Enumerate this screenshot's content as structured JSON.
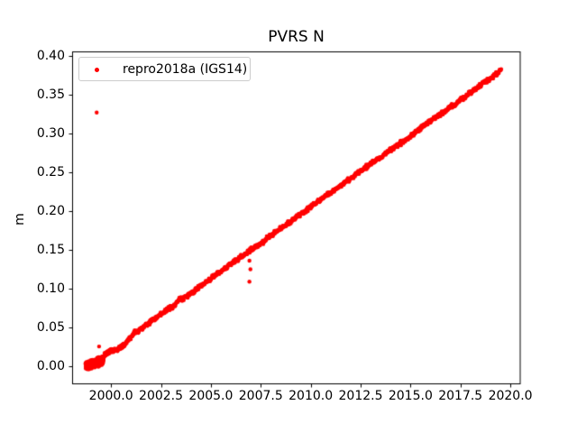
{
  "chart_data": {
    "type": "scatter",
    "title": "PVRS N",
    "xlabel": "",
    "ylabel": "m",
    "background": "#ffffff",
    "axis_color": "#000000",
    "grid": false,
    "legend": {
      "position": "upper left",
      "border_color": "#cccccc",
      "entries": [
        {
          "label": "repro2018a (IGS14)",
          "color": "#ff0000",
          "marker": "dot"
        }
      ]
    },
    "xlim": [
      1998.05,
      2020.47
    ],
    "ylim": [
      -0.0232,
      0.4045
    ],
    "xticks": [
      2000.0,
      2002.5,
      2005.0,
      2007.5,
      2010.0,
      2012.5,
      2015.0,
      2017.5,
      2020.0
    ],
    "xtick_labels": [
      "2000.0",
      "2002.5",
      "2005.0",
      "2007.5",
      "2010.0",
      "2012.5",
      "2015.0",
      "2017.5",
      "2020.0"
    ],
    "yticks": [
      0.0,
      0.05,
      0.1,
      0.15,
      0.2,
      0.25,
      0.3,
      0.35,
      0.4
    ],
    "ytick_labels": [
      "0.00",
      "0.05",
      "0.10",
      "0.15",
      "0.20",
      "0.25",
      "0.30",
      "0.35",
      "0.40"
    ],
    "series": [
      {
        "name": "repro2018a (IGS14)",
        "color": "#ff0000",
        "marker": "dot",
        "marker_size_px": 4.4,
        "band": {
          "sample_step_years": 0.02,
          "noise_m": 0.0022,
          "anchors": [
            [
              1999.6,
              0.013
            ],
            [
              1999.8,
              0.016
            ],
            [
              2000.0,
              0.0205
            ],
            [
              2000.3,
              0.0215
            ],
            [
              2000.6,
              0.026
            ],
            [
              2000.9,
              0.0345
            ],
            [
              2001.2,
              0.0435
            ],
            [
              2001.5,
              0.048
            ],
            [
              2001.8,
              0.0535
            ],
            [
              2002.1,
              0.0595
            ],
            [
              2002.4,
              0.0655
            ],
            [
              2002.7,
              0.0705
            ],
            [
              2003.0,
              0.0765
            ],
            [
              2003.2,
              0.0785
            ],
            [
              2003.4,
              0.0855
            ],
            [
              2003.6,
              0.0875
            ],
            [
              2003.9,
              0.0925
            ],
            [
              2004.2,
              0.0975
            ],
            [
              2004.5,
              0.1035
            ],
            [
              2004.8,
              0.109
            ],
            [
              2005.1,
              0.1145
            ],
            [
              2005.4,
              0.1205
            ],
            [
              2005.7,
              0.126
            ],
            [
              2006.0,
              0.1315
            ],
            [
              2006.3,
              0.137
            ],
            [
              2006.6,
              0.1425
            ],
            [
              2006.9,
              0.148
            ],
            [
              2007.1,
              0.151
            ],
            [
              2007.3,
              0.1555
            ],
            [
              2007.6,
              0.16
            ],
            [
              2007.9,
              0.1665
            ],
            [
              2008.2,
              0.172
            ],
            [
              2008.5,
              0.1775
            ],
            [
              2008.8,
              0.183
            ],
            [
              2009.1,
              0.1885
            ],
            [
              2009.4,
              0.194
            ],
            [
              2009.7,
              0.1995
            ],
            [
              2010.0,
              0.2055
            ],
            [
              2010.3,
              0.211
            ],
            [
              2010.6,
              0.2165
            ],
            [
              2010.9,
              0.222
            ],
            [
              2011.2,
              0.2275
            ],
            [
              2011.5,
              0.233
            ],
            [
              2011.8,
              0.2385
            ],
            [
              2012.1,
              0.244
            ],
            [
              2012.4,
              0.2495
            ],
            [
              2012.7,
              0.255
            ],
            [
              2013.0,
              0.2605
            ],
            [
              2013.3,
              0.267
            ],
            [
              2013.5,
              0.2685
            ],
            [
              2013.7,
              0.2735
            ],
            [
              2014.0,
              0.2785
            ],
            [
              2014.3,
              0.284
            ],
            [
              2014.6,
              0.2895
            ],
            [
              2014.9,
              0.295
            ],
            [
              2015.2,
              0.3005
            ],
            [
              2015.5,
              0.3065
            ],
            [
              2015.8,
              0.312
            ],
            [
              2016.1,
              0.3175
            ],
            [
              2016.4,
              0.323
            ],
            [
              2016.7,
              0.3285
            ],
            [
              2017.0,
              0.334
            ],
            [
              2017.3,
              0.3395
            ],
            [
              2017.6,
              0.345
            ],
            [
              2017.9,
              0.3505
            ],
            [
              2018.2,
              0.356
            ],
            [
              2018.5,
              0.362
            ],
            [
              2018.8,
              0.3675
            ],
            [
              2019.1,
              0.3725
            ],
            [
              2019.3,
              0.377
            ],
            [
              2019.55,
              0.381
            ]
          ]
        },
        "start_cluster": {
          "t_start": 1998.72,
          "t_end": 1999.62,
          "center_start": 0.0,
          "center_end": 0.008,
          "spread_m": 0.0065,
          "n_points": 260
        },
        "outliers": [
          [
            1999.28,
            0.327
          ],
          [
            1999.4,
            0.0255
          ],
          [
            2006.93,
            0.136
          ],
          [
            2006.98,
            0.125
          ],
          [
            2006.93,
            0.109
          ]
        ]
      }
    ]
  }
}
